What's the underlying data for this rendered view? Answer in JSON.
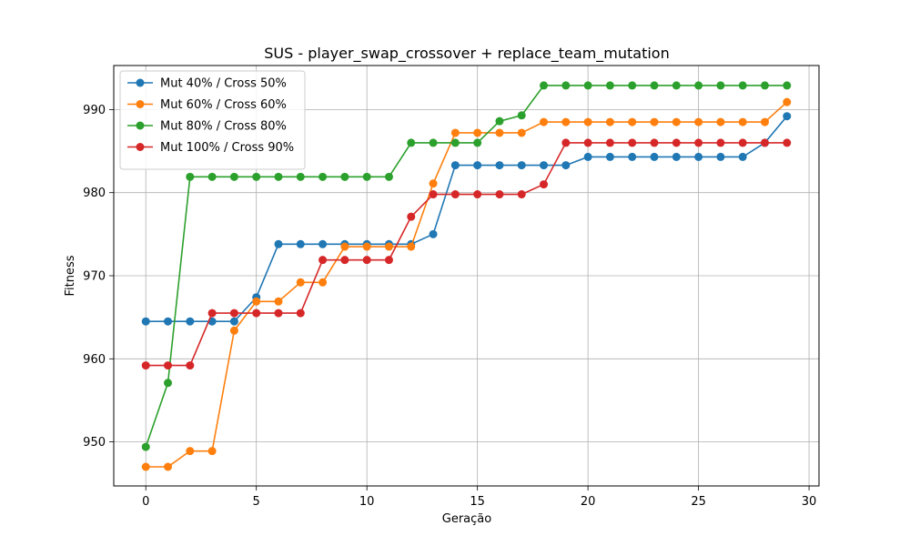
{
  "chart_data": {
    "type": "line",
    "title": "SUS - player_swap_crossover + replace_team_mutation",
    "xlabel": "Geração",
    "ylabel": "Fitness",
    "xlim": [
      -1.45,
      30.45
    ],
    "ylim": [
      944.7,
      995.3
    ],
    "xticks": [
      0,
      5,
      10,
      15,
      20,
      25,
      30
    ],
    "yticks": [
      950,
      960,
      970,
      980,
      990
    ],
    "grid": true,
    "legend_position": "top-left",
    "x": [
      0,
      1,
      2,
      3,
      4,
      5,
      6,
      7,
      8,
      9,
      10,
      11,
      12,
      13,
      14,
      15,
      16,
      17,
      18,
      19,
      20,
      21,
      22,
      23,
      24,
      25,
      26,
      27,
      28,
      29
    ],
    "series": [
      {
        "name": "Mut 40% / Cross 50%",
        "color": "#1f77b4",
        "values": [
          964.5,
          964.5,
          964.5,
          964.5,
          964.5,
          967.4,
          973.8,
          973.8,
          973.8,
          973.8,
          973.8,
          973.8,
          973.8,
          975.0,
          983.3,
          983.3,
          983.3,
          983.3,
          983.3,
          983.3,
          984.3,
          984.3,
          984.3,
          984.3,
          984.3,
          984.3,
          984.3,
          984.3,
          986.0,
          989.2
        ]
      },
      {
        "name": "Mut 60% / Cross 60%",
        "color": "#ff7f0e",
        "values": [
          947.0,
          947.0,
          948.9,
          948.9,
          963.4,
          966.9,
          966.9,
          969.2,
          969.2,
          973.5,
          973.5,
          973.5,
          973.5,
          981.1,
          987.2,
          987.2,
          987.2,
          987.2,
          988.5,
          988.5,
          988.5,
          988.5,
          988.5,
          988.5,
          988.5,
          988.5,
          988.5,
          988.5,
          988.5,
          990.9
        ]
      },
      {
        "name": "Mut 80% / Cross 80%",
        "color": "#2ca02c",
        "values": [
          949.4,
          957.1,
          981.9,
          981.9,
          981.9,
          981.9,
          981.9,
          981.9,
          981.9,
          981.9,
          981.9,
          981.9,
          986.0,
          986.0,
          986.0,
          986.0,
          988.6,
          989.3,
          992.9,
          992.9,
          992.9,
          992.9,
          992.9,
          992.9,
          992.9,
          992.9,
          992.9,
          992.9,
          992.9,
          992.9
        ]
      },
      {
        "name": "Mut 100% / Cross 90%",
        "color": "#d62728",
        "values": [
          959.2,
          959.2,
          959.2,
          965.5,
          965.5,
          965.5,
          965.5,
          965.5,
          971.9,
          971.9,
          971.9,
          971.9,
          977.1,
          979.8,
          979.8,
          979.8,
          979.8,
          979.8,
          981.0,
          986.0,
          986.0,
          986.0,
          986.0,
          986.0,
          986.0,
          986.0,
          986.0,
          986.0,
          986.0,
          986.0
        ]
      }
    ]
  }
}
